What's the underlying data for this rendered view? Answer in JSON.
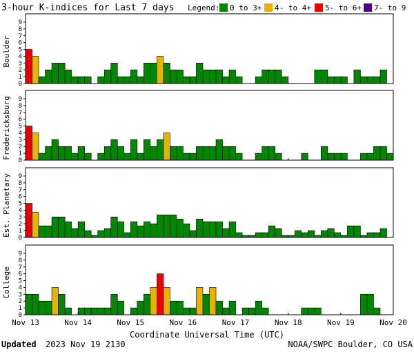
{
  "chart_data": {
    "type": "bar",
    "title": "3-hour K-indices for Last 7 days",
    "legend": {
      "label": "Legend:",
      "position": "top-right",
      "entries": [
        {
          "label": "0 to 3+",
          "color": "#008800"
        },
        {
          "label": "4- to 4+",
          "color": "#e8b400"
        },
        {
          "label": "5- to 6+",
          "color": "#ee0000"
        },
        {
          "label": "7- to 9",
          "color": "#550088"
        }
      ]
    },
    "xlabel": "Coordinate Universal Time (UTC)",
    "x_ticks": [
      "Nov 13",
      "Nov 14",
      "Nov 15",
      "Nov 16",
      "Nov 17",
      "Nov 18",
      "Nov 19",
      "Nov 20"
    ],
    "ylim": [
      0,
      9
    ],
    "y_ticks": [
      "0",
      "1",
      "2",
      "3",
      "4",
      "5",
      "6",
      "7",
      "8",
      "9"
    ],
    "intervals": 56,
    "grid": false,
    "series": [
      {
        "name": "Boulder",
        "values": [
          5,
          4,
          1,
          2,
          3,
          3,
          2,
          1,
          1,
          1,
          0,
          1,
          2,
          3,
          1,
          1,
          2,
          1,
          3,
          3,
          4,
          3,
          2,
          2,
          1,
          1,
          3,
          2,
          2,
          2,
          1,
          2,
          1,
          0,
          0,
          1,
          2,
          2,
          2,
          1,
          0,
          0,
          0,
          0,
          2,
          2,
          1,
          1,
          1,
          0,
          2,
          1,
          1,
          1,
          2,
          0
        ]
      },
      {
        "name": "Fredericksburg",
        "values": [
          5,
          4,
          1,
          2,
          3,
          2,
          2,
          1,
          2,
          1,
          0,
          1,
          2,
          3,
          2,
          1,
          3,
          1,
          3,
          2,
          3,
          4,
          2,
          2,
          1,
          1,
          2,
          2,
          2,
          3,
          2,
          2,
          1,
          0,
          0,
          1,
          2,
          2,
          1,
          0,
          0,
          0,
          1,
          0,
          0,
          2,
          1,
          1,
          1,
          0,
          0,
          1,
          1,
          2,
          2,
          1
        ]
      },
      {
        "name": "Est. Planetary",
        "values": [
          5,
          3.7,
          1.7,
          1.7,
          3,
          3,
          2.3,
          1.3,
          2.3,
          1,
          0.3,
          1,
          1.3,
          3,
          2.3,
          0.7,
          2.3,
          1.7,
          2.3,
          2,
          3.3,
          3.3,
          3.3,
          2.7,
          2,
          1,
          2.7,
          2.3,
          2.3,
          2.3,
          1.3,
          2.3,
          0.7,
          0.3,
          0.3,
          0.7,
          0.7,
          1.7,
          1.3,
          0.3,
          0.3,
          1,
          0.7,
          1,
          0.3,
          1,
          1.3,
          0.7,
          0.3,
          1.7,
          1.7,
          0.3,
          0.7,
          0.7,
          1.3,
          0
        ]
      },
      {
        "name": "College",
        "values": [
          3,
          3,
          2,
          2,
          4,
          3,
          1,
          0,
          1,
          1,
          1,
          1,
          1,
          3,
          2,
          0,
          1,
          2,
          3,
          4,
          6,
          4,
          2,
          2,
          1,
          1,
          4,
          3,
          4,
          2,
          1,
          2,
          0,
          1,
          1,
          2,
          1,
          0,
          0,
          0,
          0,
          0,
          1,
          1,
          1,
          0,
          0,
          0,
          0,
          0,
          0,
          3,
          3,
          1,
          0,
          0
        ]
      }
    ]
  },
  "footer": {
    "updated_label": "Updated",
    "updated_value": "2023 Nov 19 2130",
    "credit": "NOAA/SWPC Boulder, CO USA"
  }
}
